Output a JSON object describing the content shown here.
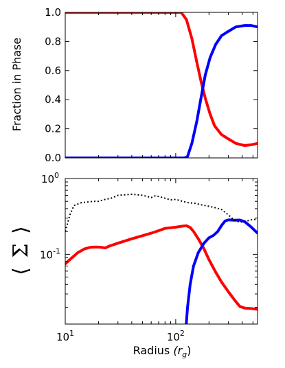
{
  "chart_data": [
    {
      "type": "line",
      "ylabel": "Fraction in Phase",
      "x_scale": "log",
      "xlim": [
        10,
        550
      ],
      "ylim": [
        0,
        1
      ],
      "yticks": [
        "0.0",
        "0.2",
        "0.4",
        "0.6",
        "0.8",
        "1.0"
      ],
      "grid": false,
      "series": [
        {
          "color": "#ff0000",
          "points": [
            [
              10,
              1.0
            ],
            [
              30,
              1.0
            ],
            [
              80,
              1.0
            ],
            [
              112,
              1.0
            ],
            [
              125,
              0.95
            ],
            [
              140,
              0.82
            ],
            [
              155,
              0.66
            ],
            [
              170,
              0.52
            ],
            [
              185,
              0.41
            ],
            [
              205,
              0.3
            ],
            [
              225,
              0.22
            ],
            [
              260,
              0.16
            ],
            [
              300,
              0.13
            ],
            [
              350,
              0.1
            ],
            [
              420,
              0.085
            ],
            [
              480,
              0.09
            ],
            [
              550,
              0.1
            ]
          ]
        },
        {
          "color": "#0000ff",
          "points": [
            [
              10,
              0.0
            ],
            [
              80,
              0.0
            ],
            [
              120,
              0.0
            ],
            [
              128,
              0.01
            ],
            [
              140,
              0.1
            ],
            [
              155,
              0.25
            ],
            [
              170,
              0.42
            ],
            [
              185,
              0.57
            ],
            [
              205,
              0.69
            ],
            [
              230,
              0.78
            ],
            [
              260,
              0.84
            ],
            [
              300,
              0.87
            ],
            [
              350,
              0.9
            ],
            [
              420,
              0.91
            ],
            [
              480,
              0.91
            ],
            [
              550,
              0.9
            ]
          ]
        }
      ]
    },
    {
      "type": "line",
      "xlabel": "Radius",
      "xlabel_unit": "(r",
      "xlabel_unit_sub": "g",
      "xlabel_unit_close": ")",
      "ylabel_symbol": "Σ",
      "x_scale": "log",
      "y_scale": "log",
      "xlim": [
        10,
        550
      ],
      "ylim": [
        0.012,
        1
      ],
      "xticks": [
        {
          "base": "10",
          "exp": "1"
        },
        {
          "base": "10",
          "exp": "2"
        }
      ],
      "yticks": [
        {
          "base": "10",
          "exp": "0"
        },
        {
          "base": "10",
          "exp": "-1"
        }
      ],
      "grid": false,
      "series": [
        {
          "color": "#ff0000",
          "points": [
            [
              10,
              0.075
            ],
            [
              11.5,
              0.09
            ],
            [
              13,
              0.105
            ],
            [
              15,
              0.118
            ],
            [
              17,
              0.124
            ],
            [
              19,
              0.125
            ],
            [
              21,
              0.124
            ],
            [
              23,
              0.121
            ],
            [
              25,
              0.128
            ],
            [
              30,
              0.14
            ],
            [
              40,
              0.16
            ],
            [
              50,
              0.176
            ],
            [
              60,
              0.19
            ],
            [
              70,
              0.205
            ],
            [
              80,
              0.22
            ],
            [
              100,
              0.228
            ],
            [
              115,
              0.235
            ],
            [
              125,
              0.238
            ],
            [
              135,
              0.226
            ],
            [
              145,
              0.2
            ],
            [
              160,
              0.16
            ],
            [
              180,
              0.118
            ],
            [
              200,
              0.085
            ],
            [
              230,
              0.058
            ],
            [
              260,
              0.043
            ],
            [
              300,
              0.032
            ],
            [
              340,
              0.025
            ],
            [
              380,
              0.0205
            ],
            [
              420,
              0.0195
            ],
            [
              470,
              0.0193
            ],
            [
              550,
              0.0188
            ]
          ]
        },
        {
          "color": "#0000ff",
          "points": [
            [
              124,
              0.011
            ],
            [
              128,
              0.02
            ],
            [
              135,
              0.04
            ],
            [
              145,
              0.07
            ],
            [
              160,
              0.105
            ],
            [
              180,
              0.14
            ],
            [
              200,
              0.165
            ],
            [
              220,
              0.178
            ],
            [
              240,
              0.2
            ],
            [
              260,
              0.24
            ],
            [
              280,
              0.275
            ],
            [
              300,
              0.285
            ],
            [
              340,
              0.282
            ],
            [
              380,
              0.283
            ],
            [
              420,
              0.27
            ],
            [
              480,
              0.23
            ],
            [
              550,
              0.19
            ]
          ]
        },
        {
          "color": "#000000",
          "style": "dotted",
          "points": [
            [
              10,
              0.2
            ],
            [
              11,
              0.33
            ],
            [
              12,
              0.44
            ],
            [
              14,
              0.48
            ],
            [
              16,
              0.49
            ],
            [
              18,
              0.5
            ],
            [
              20,
              0.5
            ],
            [
              23,
              0.53
            ],
            [
              26,
              0.55
            ],
            [
              30,
              0.6
            ],
            [
              35,
              0.61
            ],
            [
              40,
              0.62
            ],
            [
              45,
              0.61
            ],
            [
              50,
              0.6
            ],
            [
              55,
              0.58
            ],
            [
              60,
              0.56
            ],
            [
              65,
              0.59
            ],
            [
              70,
              0.58
            ],
            [
              80,
              0.55
            ],
            [
              90,
              0.52
            ],
            [
              100,
              0.53
            ],
            [
              115,
              0.5
            ],
            [
              130,
              0.48
            ],
            [
              150,
              0.47
            ],
            [
              170,
              0.45
            ],
            [
              200,
              0.43
            ],
            [
              230,
              0.41
            ],
            [
              260,
              0.39
            ],
            [
              300,
              0.33
            ],
            [
              340,
              0.28
            ],
            [
              380,
              0.265
            ],
            [
              420,
              0.27
            ],
            [
              480,
              0.285
            ],
            [
              550,
              0.29
            ]
          ]
        }
      ]
    }
  ]
}
